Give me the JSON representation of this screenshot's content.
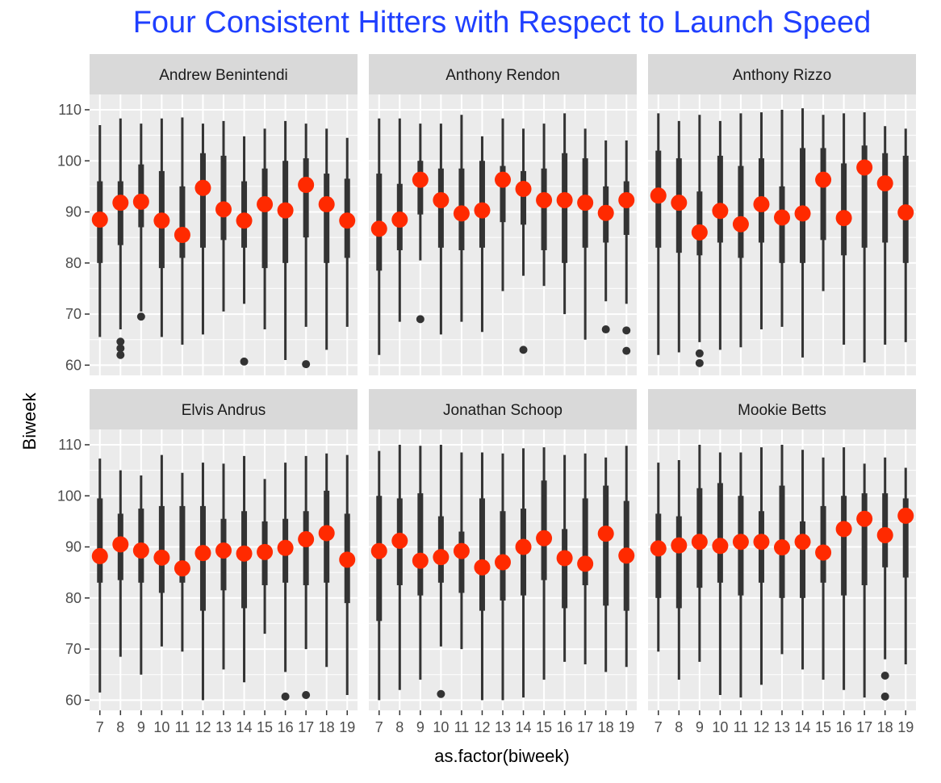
{
  "chart_data": {
    "type": "boxplot",
    "title": "Four Consistent Hitters with Respect to Launch Speed",
    "xlabel": "as.factor(biweek)",
    "ylabel": "Biweek",
    "categories": [
      "7",
      "8",
      "9",
      "10",
      "11",
      "12",
      "13",
      "14",
      "15",
      "16",
      "17",
      "18",
      "19"
    ],
    "ylim": [
      58,
      113
    ],
    "yticks": [
      60,
      70,
      80,
      90,
      100,
      110
    ],
    "grid": true,
    "colors": {
      "panel_bg": "#ebebeb",
      "strip_bg": "#d9d9d9",
      "grid": "#ffffff",
      "box": "#333333",
      "mean_point": "#ff2a00",
      "title": "#1f3fff"
    },
    "panels": [
      {
        "name": "Andrew Benintendi",
        "means": [
          88.5,
          91.8,
          92.0,
          88.3,
          85.5,
          94.7,
          90.5,
          88.3,
          91.5,
          90.3,
          95.3,
          91.5,
          88.3
        ],
        "q1": [
          80,
          83.5,
          87,
          79,
          81,
          83,
          84.5,
          83,
          79,
          80,
          85,
          80,
          81
        ],
        "q3": [
          96,
          96,
          99.3,
          98,
          95,
          101.5,
          101,
          96,
          98.5,
          100,
          100.5,
          97.5,
          96.5
        ],
        "ymin": [
          65.5,
          67,
          70.5,
          65.5,
          64,
          66,
          70.5,
          72,
          67,
          61,
          67.5,
          63,
          67.5
        ],
        "ymax": [
          107,
          108.3,
          107.3,
          108.3,
          108.5,
          107.3,
          107.8,
          104.8,
          106.3,
          107.8,
          107.3,
          106.3,
          104.5
        ],
        "outliers": [
          [],
          [
            64.6,
            63.3,
            62.0
          ],
          [
            69.5
          ],
          [],
          [],
          [],
          [],
          [
            60.7
          ],
          [],
          [],
          [
            60.2
          ],
          [],
          []
        ]
      },
      {
        "name": "Anthony Rendon",
        "means": [
          86.7,
          88.5,
          96.3,
          92.3,
          89.7,
          90.3,
          96.3,
          94.5,
          92.3,
          92.3,
          91.8,
          89.8,
          92.3
        ],
        "q1": [
          78.5,
          82.5,
          89.5,
          83,
          82.5,
          83,
          88,
          87.5,
          82.5,
          80,
          83,
          84,
          85.5
        ],
        "q3": [
          97.5,
          95.5,
          100,
          98.5,
          98.5,
          100,
          99,
          98,
          98.5,
          101.5,
          100.5,
          95,
          96
        ],
        "ymin": [
          62,
          68.5,
          80.5,
          66,
          68.5,
          66.5,
          74.5,
          77.5,
          75.5,
          70,
          65,
          72.5,
          72
        ],
        "ymax": [
          108.3,
          108.3,
          107.3,
          107.3,
          109,
          104.8,
          108.3,
          106.3,
          107.3,
          109.3,
          106.3,
          104,
          104
        ],
        "outliers": [
          [],
          [],
          [
            69.0
          ],
          [],
          [],
          [],
          [],
          [
            63.0
          ],
          [],
          [],
          [],
          [
            67.0
          ],
          [
            66.8,
            62.8
          ]
        ]
      },
      {
        "name": "Anthony Rizzo",
        "means": [
          93.2,
          91.8,
          86.0,
          90.2,
          87.6,
          91.5,
          88.9,
          89.7,
          96.3,
          88.8,
          98.7,
          95.6,
          89.9
        ],
        "q1": [
          83,
          82,
          81.5,
          84,
          81,
          84,
          80,
          80,
          84.5,
          81.5,
          83,
          84,
          80
        ],
        "q3": [
          102,
          100.5,
          94,
          101,
          99,
          100.5,
          95,
          102.5,
          102.5,
          99.5,
          103,
          101.5,
          101
        ],
        "ymin": [
          62,
          62.5,
          64.5,
          63,
          63.5,
          67,
          67.5,
          61.5,
          74.5,
          64,
          60.5,
          64,
          64.5
        ],
        "ymax": [
          109.3,
          107.8,
          109,
          107.8,
          109.3,
          109.5,
          110,
          110.3,
          109,
          109.3,
          109.5,
          106.8,
          106.3
        ],
        "outliers": [
          [],
          [],
          [
            62.3,
            60.4
          ],
          [],
          [],
          [],
          [],
          [],
          [],
          [],
          [],
          [],
          []
        ]
      },
      {
        "name": "Elvis Andrus",
        "means": [
          88.2,
          90.5,
          89.3,
          87.9,
          85.8,
          88.8,
          89.3,
          88.7,
          89.0,
          89.8,
          91.5,
          92.7,
          87.5
        ],
        "q1": [
          83,
          83.5,
          83,
          81,
          83,
          77.5,
          81.5,
          78,
          82.5,
          83,
          82.5,
          83,
          79
        ],
        "q3": [
          99.5,
          96.5,
          97.5,
          98,
          98,
          98,
          95.5,
          97,
          95,
          95.5,
          97,
          101,
          96.5
        ],
        "ymin": [
          61.5,
          68.5,
          65,
          70.5,
          69.5,
          60,
          66,
          63.5,
          73,
          65.5,
          70,
          66.5,
          61
        ],
        "ymax": [
          107.3,
          105,
          104,
          108,
          104.5,
          106.5,
          106.3,
          107.8,
          103.3,
          106.5,
          107.8,
          108.3,
          108
        ],
        "outliers": [
          [],
          [],
          [],
          [],
          [],
          [],
          [],
          [],
          [],
          [
            60.7
          ],
          [
            61.0
          ],
          [],
          []
        ]
      },
      {
        "name": "Jonathan Schoop",
        "means": [
          89.2,
          91.2,
          87.3,
          88.0,
          89.2,
          86.0,
          87.0,
          90.0,
          91.7,
          87.8,
          86.7,
          92.6,
          88.3
        ],
        "q1": [
          75.5,
          82.5,
          80.5,
          83,
          81,
          77.5,
          79.5,
          80.5,
          83.5,
          78,
          82.5,
          78.5,
          77.5
        ],
        "q3": [
          100,
          99.5,
          100.5,
          96,
          93,
          99.5,
          97,
          97.5,
          103,
          93.5,
          99.5,
          102,
          99
        ],
        "ymin": [
          60,
          62,
          64,
          70.5,
          70,
          60,
          60,
          60.5,
          64,
          67.5,
          67,
          65.5,
          66.5
        ],
        "ymax": [
          108.8,
          110,
          109.8,
          110,
          108.5,
          108.5,
          108.3,
          109.3,
          109.5,
          108,
          108.3,
          107.5,
          109.8
        ],
        "outliers": [
          [],
          [],
          [],
          [
            61.2
          ],
          [],
          [],
          [],
          [],
          [],
          [],
          [],
          [],
          []
        ]
      },
      {
        "name": "Mookie Betts",
        "means": [
          89.7,
          90.3,
          91.0,
          90.2,
          91.0,
          91.0,
          89.9,
          91.0,
          88.9,
          93.5,
          95.5,
          92.3,
          96.1
        ],
        "q1": [
          80,
          78,
          82,
          83,
          80.5,
          83,
          80,
          80,
          83,
          80.5,
          82.5,
          86,
          84
        ],
        "q3": [
          96.5,
          96,
          101.5,
          102.5,
          100,
          97,
          102,
          95,
          98,
          100,
          100.5,
          100.5,
          99.5
        ],
        "ymin": [
          69.5,
          64,
          67.5,
          61,
          60.5,
          63,
          69,
          66,
          64,
          62,
          60.5,
          68,
          67
        ],
        "ymax": [
          106.5,
          107,
          110,
          108.5,
          108.5,
          109.5,
          110,
          109,
          107.5,
          109.5,
          106.3,
          107.5,
          105.5
        ],
        "outliers": [
          [],
          [],
          [],
          [],
          [],
          [],
          [],
          [],
          [],
          [],
          [],
          [
            64.8,
            60.7
          ],
          []
        ]
      }
    ]
  }
}
